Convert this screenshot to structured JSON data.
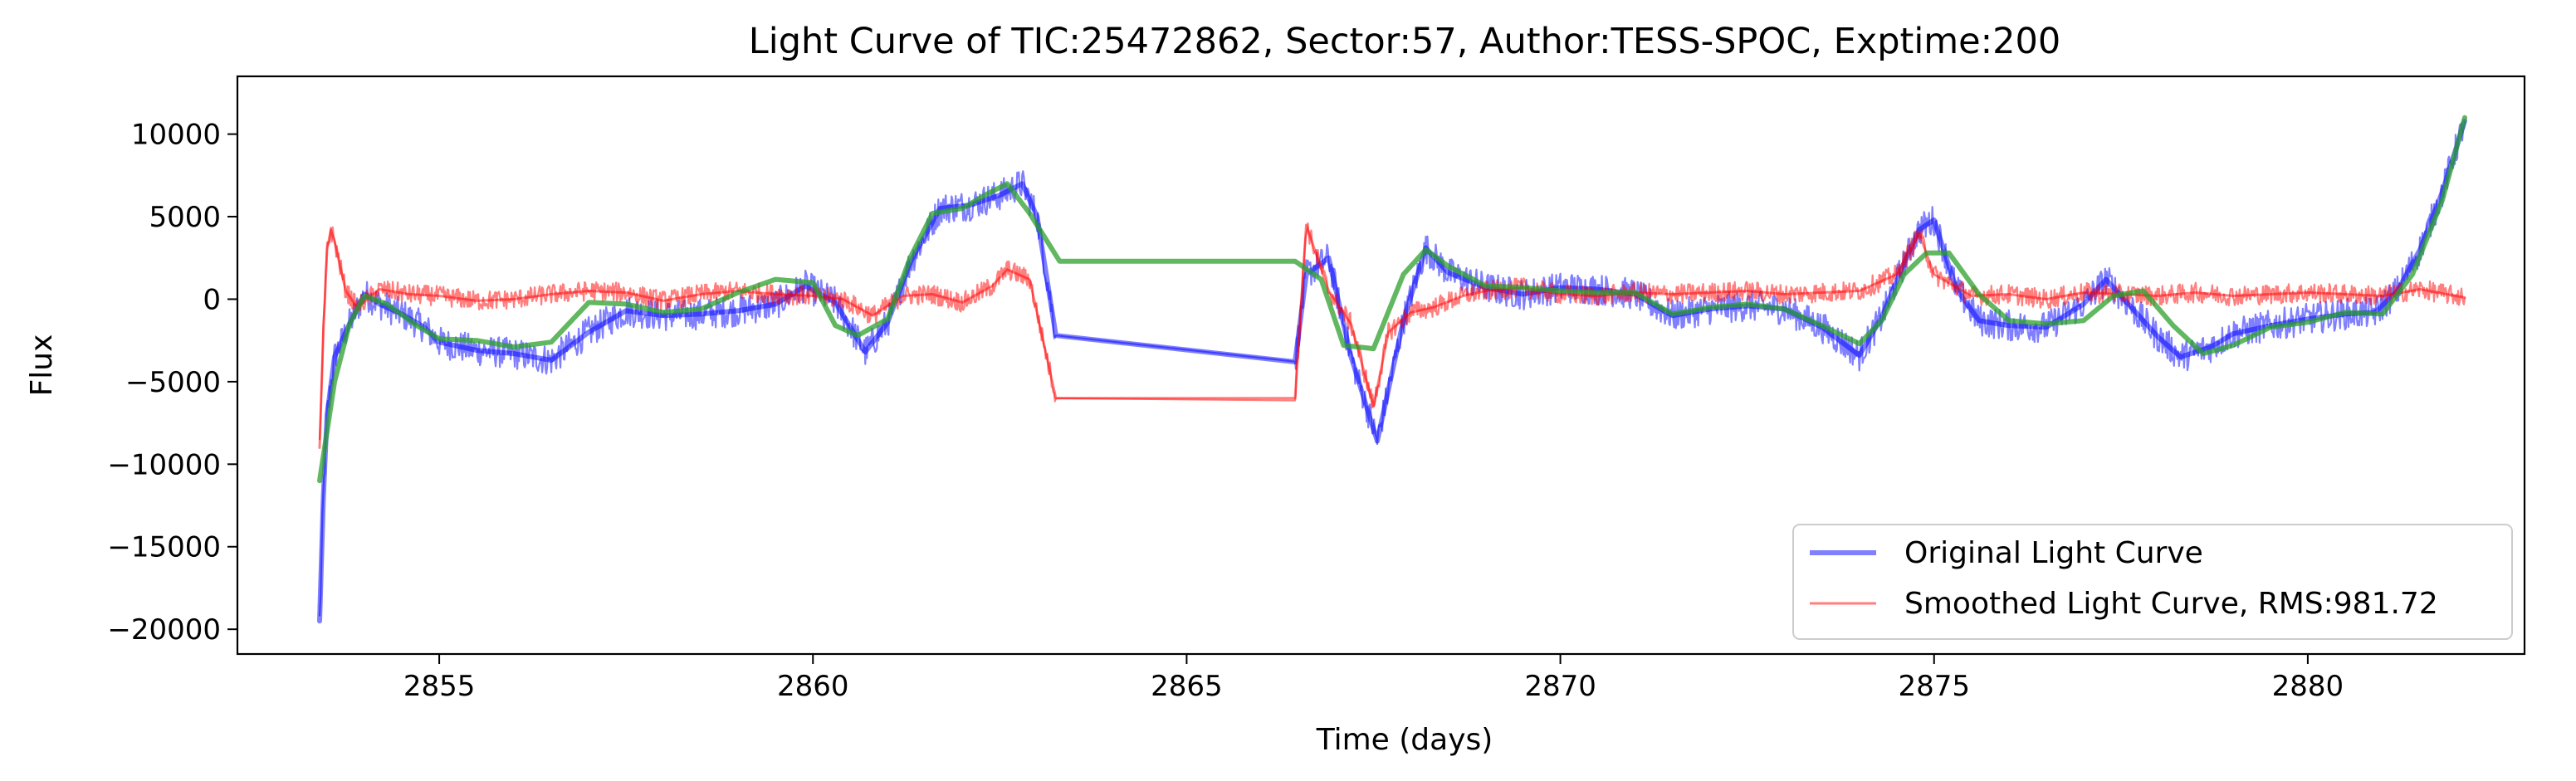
{
  "chart_data": {
    "type": "line",
    "title": "Light Curve of TIC:25472862, Sector:57, Author:TESS-SPOC, Exptime:200",
    "xlabel": "Time (days)",
    "ylabel": "Flux",
    "xlim": [
      2852.3,
      2882.9
    ],
    "ylim": [
      -21500,
      13500
    ],
    "xticks": [
      2855,
      2860,
      2865,
      2870,
      2875,
      2880
    ],
    "yticks": [
      -20000,
      -15000,
      -10000,
      -5000,
      0,
      5000,
      10000
    ],
    "legend_position": "bottom-right",
    "grid": false,
    "series": [
      {
        "name": "Original Light Curve",
        "color": "#0000ff",
        "x": [
          2853.4,
          2853.45,
          2853.5,
          2853.6,
          2853.8,
          2854.0,
          2854.2,
          2854.5,
          2854.8,
          2855.0,
          2855.5,
          2856.0,
          2856.5,
          2857.0,
          2857.5,
          2858.0,
          2858.5,
          2859.0,
          2859.5,
          2859.9,
          2860.3,
          2860.7,
          2861.0,
          2861.3,
          2861.7,
          2862.1,
          2862.5,
          2862.8,
          2863.0,
          2863.25,
          2866.45,
          2866.6,
          2866.9,
          2867.2,
          2867.55,
          2867.9,
          2868.2,
          2868.5,
          2869.0,
          2869.5,
          2870.0,
          2870.5,
          2871.0,
          2871.5,
          2872.0,
          2872.5,
          2873.0,
          2873.5,
          2874.0,
          2874.3,
          2874.6,
          2874.8,
          2875.0,
          2875.3,
          2875.6,
          2876.0,
          2876.5,
          2877.0,
          2877.3,
          2877.6,
          2878.0,
          2878.3,
          2878.7,
          2879.0,
          2879.5,
          2880.0,
          2880.5,
          2880.9,
          2881.2,
          2881.5,
          2881.8,
          2882.1
        ],
        "y": [
          -19500,
          -12000,
          -7000,
          -3500,
          -1500,
          300,
          -300,
          -900,
          -1700,
          -2600,
          -3100,
          -3300,
          -3700,
          -2000,
          -700,
          -1000,
          -900,
          -700,
          -300,
          800,
          -200,
          -3200,
          -1400,
          2200,
          5500,
          5700,
          6300,
          7000,
          5000,
          -2200,
          -3800,
          1500,
          2500,
          -3500,
          -8600,
          -1300,
          3100,
          1600,
          700,
          300,
          700,
          600,
          300,
          -1000,
          -600,
          -400,
          -600,
          -1700,
          -3400,
          -1100,
          2200,
          4200,
          4800,
          600,
          -1300,
          -1600,
          -1700,
          -300,
          1200,
          -300,
          -2300,
          -3500,
          -2900,
          -2100,
          -1600,
          -1200,
          -900,
          -800,
          500,
          3000,
          6500,
          10800
        ]
      },
      {
        "name": "Smoothed Light Curve, RMS:981.72",
        "color": "#ff0000",
        "x": [
          2853.4,
          2853.45,
          2853.5,
          2853.55,
          2853.6,
          2853.75,
          2853.9,
          2854.2,
          2854.6,
          2855.0,
          2855.5,
          2856.0,
          2856.5,
          2857.0,
          2857.5,
          2858.0,
          2858.5,
          2859.0,
          2859.5,
          2860.0,
          2860.4,
          2860.8,
          2861.2,
          2861.6,
          2862.0,
          2862.4,
          2862.6,
          2862.9,
          2863.25,
          2866.45,
          2866.6,
          2866.9,
          2867.2,
          2867.5,
          2867.7,
          2868.0,
          2868.3,
          2868.7,
          2869.0,
          2869.5,
          2870.0,
          2870.5,
          2871.0,
          2871.5,
          2872.0,
          2872.5,
          2873.0,
          2873.5,
          2874.0,
          2874.5,
          2874.8,
          2875.0,
          2875.5,
          2876.0,
          2876.5,
          2877.0,
          2877.5,
          2878.0,
          2878.5,
          2879.0,
          2879.5,
          2880.0,
          2880.5,
          2881.0,
          2881.5,
          2882.1
        ],
        "y": [
          -9000,
          -2000,
          3000,
          4200,
          3500,
          500,
          -500,
          600,
          300,
          200,
          -100,
          0,
          300,
          500,
          400,
          -100,
          300,
          500,
          300,
          200,
          0,
          -1000,
          200,
          300,
          -200,
          800,
          1800,
          1200,
          -6000,
          -6000,
          4500,
          500,
          -1500,
          -6500,
          -2000,
          -800,
          -500,
          200,
          500,
          700,
          300,
          200,
          400,
          300,
          400,
          500,
          300,
          400,
          500,
          1500,
          4000,
          1500,
          200,
          300,
          0,
          400,
          300,
          200,
          400,
          200,
          300,
          400,
          300,
          200,
          600,
          100
        ]
      },
      {
        "color": "#2ca02c",
        "x": [
          2853.4,
          2853.6,
          2853.8,
          2854.0,
          2854.3,
          2854.7,
          2855.0,
          2855.5,
          2856.0,
          2856.5,
          2857.0,
          2857.5,
          2858.0,
          2858.5,
          2859.0,
          2859.5,
          2860.0,
          2860.3,
          2860.6,
          2861.0,
          2861.3,
          2861.6,
          2862.0,
          2862.3,
          2862.6,
          2862.9,
          2863.3,
          2866.45,
          2866.8,
          2867.1,
          2867.5,
          2867.9,
          2868.2,
          2868.5,
          2869.0,
          2869.5,
          2870.0,
          2870.5,
          2871.0,
          2871.5,
          2872.0,
          2872.5,
          2873.0,
          2873.5,
          2874.0,
          2874.3,
          2874.6,
          2874.9,
          2875.2,
          2875.6,
          2876.0,
          2876.5,
          2877.0,
          2877.4,
          2877.8,
          2878.2,
          2878.6,
          2879.0,
          2879.5,
          2880.0,
          2880.5,
          2881.0,
          2881.4,
          2881.8,
          2882.1
        ],
        "y": [
          -11000,
          -5000,
          -1500,
          200,
          -300,
          -1600,
          -2400,
          -2500,
          -2900,
          -2600,
          -200,
          -300,
          -800,
          -600,
          400,
          1200,
          1000,
          -1600,
          -2200,
          -1200,
          2500,
          5200,
          5500,
          6300,
          7000,
          5200,
          2300,
          2300,
          1200,
          -2800,
          -3000,
          1500,
          3000,
          2000,
          800,
          700,
          500,
          400,
          400,
          -900,
          -500,
          -300,
          -600,
          -1600,
          -2700,
          -1300,
          1500,
          2800,
          2800,
          300,
          -1300,
          -1500,
          -1300,
          200,
          500,
          -1600,
          -3300,
          -2800,
          -1700,
          -1400,
          -800,
          -900,
          1500,
          6000,
          11000
        ]
      }
    ]
  }
}
